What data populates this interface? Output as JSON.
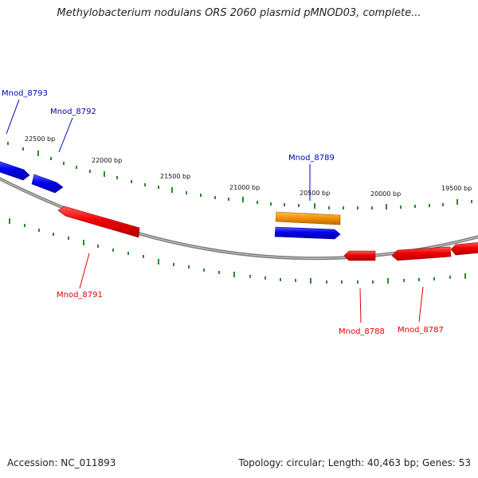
{
  "title": "Methylobacterium nodulans ORS 2060 plasmid pMNOD03, complete...",
  "footer": {
    "accession": "Accession: NC_011893",
    "summary": "Topology: circular; Length: 40,463 bp; Genes: 53"
  },
  "colors": {
    "forward_gene": "#0000e0",
    "reverse_gene": "#ee0000",
    "other_feature": "#f09000",
    "tick": "#2a8a2a",
    "backbone": "#8a8a8a"
  },
  "scale_labels": [
    "22500 bp",
    "22000 bp",
    "21500 bp",
    "21000 bp",
    "20500 bp",
    "20000 bp",
    "19500 bp"
  ],
  "genes": [
    {
      "name": "Mnod_8793",
      "strand": "forward"
    },
    {
      "name": "Mnod_8792",
      "strand": "forward"
    },
    {
      "name": "Mnod_8791",
      "strand": "reverse"
    },
    {
      "name": "Mnod_8789",
      "strand": "forward"
    },
    {
      "name": "Mnod_8788",
      "strand": "reverse"
    },
    {
      "name": "Mnod_8787",
      "strand": "reverse"
    }
  ]
}
